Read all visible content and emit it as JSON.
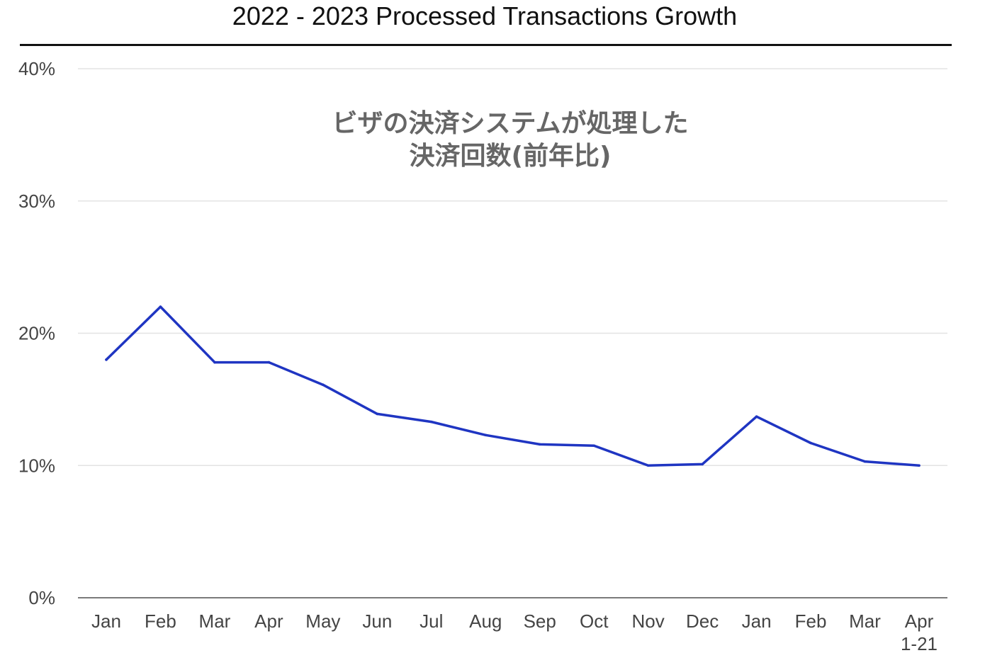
{
  "page": {
    "title": "2022 - 2023 Processed Transactions Growth",
    "overlay_line1": "ビザの決済システムが処理した",
    "overlay_line2": "決済回数(前年比)"
  },
  "colors": {
    "series": "#1f35c2",
    "grid": "#e3e3e3",
    "axis_line": "#7a7a7a",
    "tick_text": "#444444"
  },
  "chart_data": {
    "type": "line",
    "title": "2022 - 2023 Processed Transactions Growth",
    "subtitle": "ビザの決済システムが処理した 決済回数(前年比)",
    "xlabel": "",
    "ylabel": "",
    "categories": [
      "Jan",
      "Feb",
      "Mar",
      "Apr",
      "May",
      "Jun",
      "Jul",
      "Aug",
      "Sep",
      "Oct",
      "Nov",
      "Dec",
      "Jan",
      "Feb",
      "Mar",
      "Apr 1-21"
    ],
    "category_labels": [
      [
        "Jan"
      ],
      [
        "Feb"
      ],
      [
        "Mar"
      ],
      [
        "Apr"
      ],
      [
        "May"
      ],
      [
        "Jun"
      ],
      [
        "Jul"
      ],
      [
        "Aug"
      ],
      [
        "Sep"
      ],
      [
        "Oct"
      ],
      [
        "Nov"
      ],
      [
        "Dec"
      ],
      [
        "Jan"
      ],
      [
        "Feb"
      ],
      [
        "Mar"
      ],
      [
        "Apr",
        "1-21"
      ]
    ],
    "series": [
      {
        "values": [
          18.0,
          22.0,
          17.8,
          17.8,
          16.1,
          13.9,
          13.3,
          12.3,
          11.6,
          11.5,
          10.0,
          10.1,
          13.7,
          11.7,
          10.3,
          10.0
        ]
      }
    ],
    "ylim": [
      0,
      40
    ],
    "yticks": [
      0,
      10,
      20,
      30,
      40
    ],
    "ytick_labels": [
      "0%",
      "10%",
      "20%",
      "30%",
      "40%"
    ],
    "grid": true,
    "legend": "none"
  }
}
